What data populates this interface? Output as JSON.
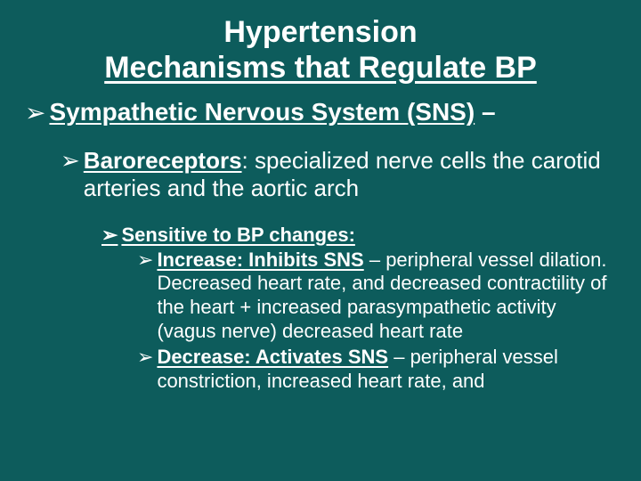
{
  "title": {
    "line1": "Hypertension",
    "line2": "Mechanisms that Regulate BP"
  },
  "bullet_glyph": "➢",
  "level1": {
    "text": "Sympathetic Nervous System (SNS)",
    "trailer": " – "
  },
  "level2": {
    "term": "Baroreceptors",
    "rest": ":  specialized nerve cells the carotid arteries and the aortic arch"
  },
  "level3": {
    "text": "Sensitive to BP changes:"
  },
  "level4a": {
    "term": "Increase:  Inhibits SNS",
    "rest": " – peripheral vessel dilation. Decreased heart rate, and decreased contractility of the heart + increased parasympathetic activity (vagus nerve) decreased heart rate"
  },
  "level4b": {
    "term": "Decrease:  Activates SNS",
    "rest": " – peripheral vessel constriction, increased heart rate, and"
  },
  "colors": {
    "background": "#0d5c5c",
    "text": "#ffffff"
  }
}
